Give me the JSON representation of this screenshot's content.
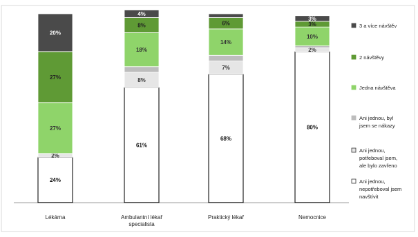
{
  "chart_data": {
    "type": "bar",
    "stacked": true,
    "categories": [
      "Lékárna",
      "Ambulantní lékař specialista",
      "Praktický lékař",
      "Nemocnice"
    ],
    "category_label_lines": [
      [
        "Lékárna"
      ],
      [
        "Ambulantní lékař",
        "specialista"
      ],
      [
        "Praktický lékař"
      ],
      [
        "Nemocnice"
      ]
    ],
    "ylim": [
      0,
      100
    ],
    "grid": false,
    "legend_position": "right",
    "series": [
      {
        "name": "Ani jednou, nepotřeboval jsem navštívit",
        "color": "#ffffff",
        "label_color": "#111111",
        "values": [
          24,
          61,
          68,
          80
        ],
        "labels": [
          "24%",
          "61%",
          "68%",
          "80%"
        ]
      },
      {
        "name": "Ani jednou, potřeboval jsem, ale bylo zavřeno",
        "color": "#e6e6e6",
        "label_color": "#333333",
        "values": [
          2,
          8,
          7,
          2
        ],
        "labels": [
          "2%",
          "8%",
          "7%",
          "2%"
        ]
      },
      {
        "name": "Ani jednou, byl jsem se nákazy",
        "color": "#bdbdbd",
        "label_color": "#333333",
        "values": [
          0,
          3,
          3,
          1
        ],
        "labels": [
          "",
          "",
          "",
          ""
        ]
      },
      {
        "name": "Jedna návštěva",
        "color": "#8fd46a",
        "label_color": "#333333",
        "values": [
          27,
          18,
          14,
          10
        ],
        "labels": [
          "27%",
          "18%",
          "14%",
          "10%"
        ]
      },
      {
        "name": "2 návštěvy",
        "color": "#5f9a35",
        "label_color": "#222222",
        "values": [
          27,
          8,
          6,
          3
        ],
        "labels": [
          "27%",
          "8%",
          "6%",
          "3%"
        ]
      },
      {
        "name": "3 a více návštěv",
        "color": "#4a4a4a",
        "label_color": "#ffffff",
        "values": [
          20,
          4,
          2,
          3
        ],
        "labels": [
          "20%",
          "4%",
          "",
          "3%"
        ]
      }
    ],
    "legend_lines": [
      {
        "series": 5,
        "lines": [
          "3 a více návštěv"
        ]
      },
      {
        "series": 4,
        "lines": [
          "2 návštěvy"
        ]
      },
      {
        "series": 3,
        "lines": [
          "Jedna návštěva"
        ]
      },
      {
        "series": 2,
        "lines": [
          "Ani jednou, byl",
          "jsem se nákazy"
        ]
      },
      {
        "series": 1,
        "lines": [
          "Ani jednou,",
          "potřeboval jsem,",
          "ale bylo zavřeno"
        ]
      },
      {
        "series": 0,
        "lines": [
          "Ani jednou,",
          "nepotřeboval jsem",
          "navštívit"
        ]
      }
    ]
  }
}
